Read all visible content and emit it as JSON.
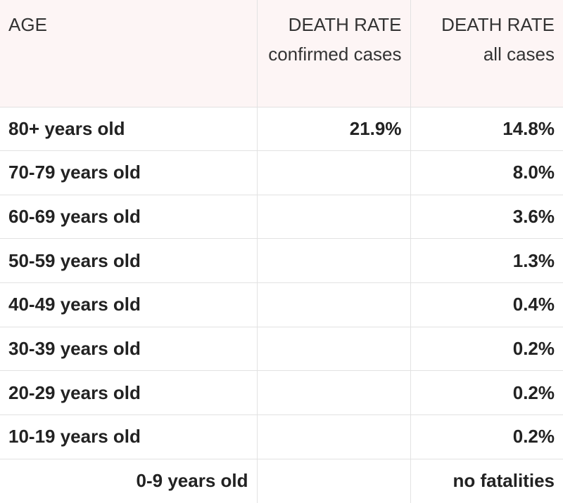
{
  "table": {
    "header": [
      "AGE",
      "DEATH RATE confirmed cases",
      "DEATH RATE all cases"
    ],
    "rows": [
      [
        "80+ years old",
        "21.9%",
        "14.8%"
      ],
      [
        "70-79 years old",
        null,
        "8.0%"
      ],
      [
        "60-69 years old",
        null,
        "3.6%"
      ],
      [
        "50-59 years old",
        null,
        "1.3%"
      ],
      [
        "40-49 years old",
        null,
        "0.4%"
      ],
      [
        "30-39 years old",
        null,
        "0.2%"
      ],
      [
        "20-29 years old",
        null,
        "0.2%"
      ],
      [
        "10-19 years old",
        null,
        "0.2%"
      ],
      [
        "0-9 years old",
        null,
        "no fatalities"
      ]
    ]
  }
}
